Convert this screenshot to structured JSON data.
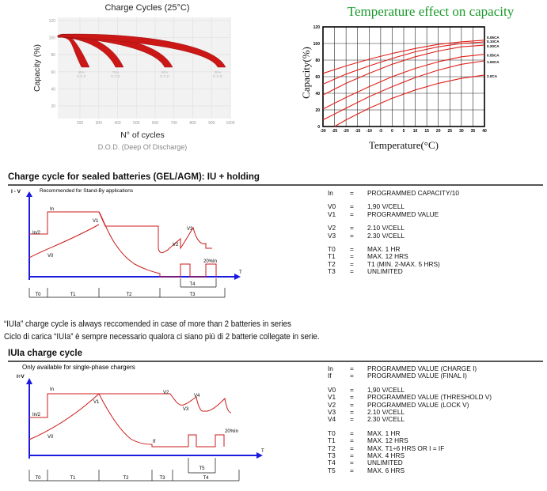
{
  "charge_cycles_chart": {
    "title": "Charge Cycles (25°C)",
    "ylabel": "Capacity (%)",
    "xlabel": "N° of cycles",
    "xsublabel": "D.O.D. (Deep Of Discharge)",
    "yticks": [
      "120",
      "100",
      "80",
      "60",
      "40",
      "20"
    ],
    "xticks": [
      "200",
      "300",
      "400",
      "500",
      "600",
      "700",
      "800",
      "900",
      "1000"
    ],
    "band_labels": [
      {
        "pct": "95%",
        "dod": "D.O.D"
      },
      {
        "pct": "75%",
        "dod": "D.O.D"
      },
      {
        "pct": "50%",
        "dod": "D.O.D"
      },
      {
        "pct": "30%",
        "dod": "D.O.D"
      }
    ],
    "band_color": "#cc1717"
  },
  "chart_data": {
    "type": "line",
    "title": "Temperature effect on capacity",
    "xlabel": "Temperature(°C)",
    "ylabel": "Capacity(%)",
    "xlim": [
      -30,
      40
    ],
    "ylim": [
      0,
      120
    ],
    "xticks": [
      "-30",
      "-25",
      "-20",
      "-15",
      "-10",
      "-5",
      "0",
      "5",
      "10",
      "15",
      "20",
      "25",
      "30",
      "35",
      "40"
    ],
    "yticks": [
      "120",
      "100",
      "80",
      "60",
      "40",
      "20",
      "0"
    ],
    "grid": true,
    "color": "#e0201a",
    "title_color": "#1a9a2a",
    "series": [
      {
        "name": "0.05CA",
        "x": [
          -30,
          -20,
          -10,
          0,
          10,
          20,
          30,
          40
        ],
        "y": [
          64,
          73,
          81,
          88,
          94,
          99,
          102,
          104
        ]
      },
      {
        "name": "0.10CA",
        "x": [
          -30,
          -20,
          -10,
          0,
          10,
          20,
          30,
          40
        ],
        "y": [
          51,
          63,
          73,
          82,
          90,
          96,
          100,
          102
        ]
      },
      {
        "name": "0.20CA",
        "x": [
          -30,
          -20,
          -10,
          0,
          10,
          20,
          30,
          40
        ],
        "y": [
          38,
          52,
          64,
          75,
          84,
          91,
          96,
          98
        ]
      },
      {
        "name": "0.55CA",
        "x": [
          -30,
          -20,
          -10,
          0,
          10,
          20,
          30,
          40
        ],
        "y": [
          21,
          35,
          48,
          60,
          70,
          78,
          84,
          87
        ]
      },
      {
        "name": "1.00CA",
        "x": [
          -30,
          -20,
          -10,
          0,
          10,
          20,
          30,
          40
        ],
        "y": [
          8,
          22,
          36,
          48,
          59,
          68,
          75,
          79
        ]
      },
      {
        "name": "2.0CA",
        "x": [
          -25,
          -20,
          -10,
          0,
          10,
          20,
          30,
          40
        ],
        "y": [
          0,
          8,
          22,
          34,
          44,
          52,
          58,
          62
        ]
      }
    ]
  },
  "section1": {
    "title": "Charge cycle for sealed batteries (GEL/AGM): IU + holding",
    "axis_y": "I - V",
    "subtitle": "Recommended for Stand-By applications",
    "labels": {
      "in": "In",
      "in2": "In/2",
      "v0": "V0",
      "v1": "V1",
      "v2": "V2",
      "v3": "V3",
      "pct": "20%In",
      "t": "T"
    },
    "periods": [
      "T0",
      "T1",
      "T2",
      "T3"
    ],
    "t4": "T4",
    "defs": [
      [
        {
          "k": "In",
          "eq": "=",
          "v": "PROGRAMMED CAPACITY/10"
        }
      ],
      [
        {
          "k": "V0",
          "eq": "=",
          "v": "1,90 V/CELL"
        },
        {
          "k": "V1",
          "eq": "=",
          "v": "PROGRAMMED VALUE"
        }
      ],
      [
        {
          "k": "V2",
          "eq": "=",
          "v": "2.10 V/CELL"
        },
        {
          "k": "V3",
          "eq": "=",
          "v": "2.30 V/CELL"
        }
      ],
      [
        {
          "k": "T0",
          "eq": "=",
          "v": "MAX. 1 HR"
        },
        {
          "k": "T1",
          "eq": "=",
          "v": "MAX. 12 HRS"
        },
        {
          "k": "T2",
          "eq": "=",
          "v": "T1 (MIN. 2-MAX. 5 HRS)"
        },
        {
          "k": "T3",
          "eq": "=",
          "v": "UNLIMITED"
        }
      ]
    ]
  },
  "notes": [
    "“IUIa” charge cycle is always reccomended in case of more than 2 batteries in series",
    "Ciclo di carica “IUIa” è sempre necessario qualora ci siano più di 2 batterie collegate in serie."
  ],
  "section2": {
    "title": "IUIa charge cycle",
    "axis_y": "I÷V",
    "subtitle": "Only available for single-phase chargers",
    "labels": {
      "in": "In",
      "in2": "In/2",
      "v0": "V0",
      "v1": "V1",
      "v2": "V2",
      "v3": "V3",
      "v4": "V4",
      "if": "If",
      "pct": "20%In",
      "t": "T"
    },
    "periods": [
      "T0",
      "T1",
      "T2",
      "T3",
      "T4"
    ],
    "t5": "T5",
    "defs": [
      [
        {
          "k": "In",
          "eq": "=",
          "v": "PROGRAMMED VALUE (CHARGE I)"
        },
        {
          "k": "If",
          "eq": "=",
          "v": "PROGRAMMED VALUE (FINAL I)"
        }
      ],
      [
        {
          "k": "V0",
          "eq": "=",
          "v": "1,90 V/CELL"
        },
        {
          "k": "V1",
          "eq": "=",
          "v": "PROGRAMMED VALUE (THRESHOLD V)"
        },
        {
          "k": "V2",
          "eq": "=",
          "v": "PROGRAMMED VALUE (LOCK V)"
        },
        {
          "k": "V3",
          "eq": "=",
          "v": "2.10 V/CELL"
        },
        {
          "k": "V4",
          "eq": "=",
          "v": "2.30 V/CELL"
        }
      ],
      [
        {
          "k": "T0",
          "eq": "=",
          "v": "MAX. 1 HR"
        },
        {
          "k": "T1",
          "eq": "=",
          "v": "MAX. 12 HRS"
        },
        {
          "k": "T2",
          "eq": "=",
          "v": "MAX. T1÷6 HRS OR I = IF"
        },
        {
          "k": "T3",
          "eq": "=",
          "v": "MAX. 4 HRS"
        },
        {
          "k": "T4",
          "eq": "=",
          "v": "UNLIMITED"
        },
        {
          "k": "T5",
          "eq": "=",
          "v": "MAX. 6 HRS"
        }
      ]
    ]
  }
}
